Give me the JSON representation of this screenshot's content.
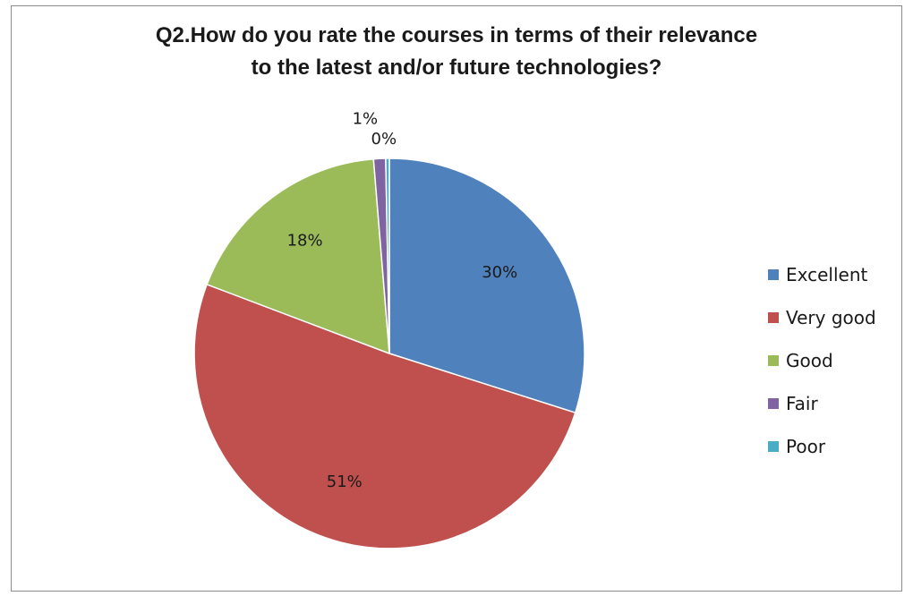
{
  "chart_data": {
    "type": "pie",
    "title_lines": [
      "Q2.How do you rate the courses in terms of their relevance",
      "to the latest and/or future technologies?"
    ],
    "categories": [
      "Excellent",
      "Very good",
      "Good",
      "Fair",
      "Poor"
    ],
    "values": [
      30,
      51,
      18,
      1,
      0.3
    ],
    "data_labels": [
      "30%",
      "51%",
      "18%",
      "1%",
      "0%"
    ],
    "colors": [
      "#4f81bd",
      "#c0504d",
      "#9bbb59",
      "#8064a2",
      "#4bacc6"
    ],
    "legend_position": "right",
    "start_angle": "top, clockwise"
  }
}
